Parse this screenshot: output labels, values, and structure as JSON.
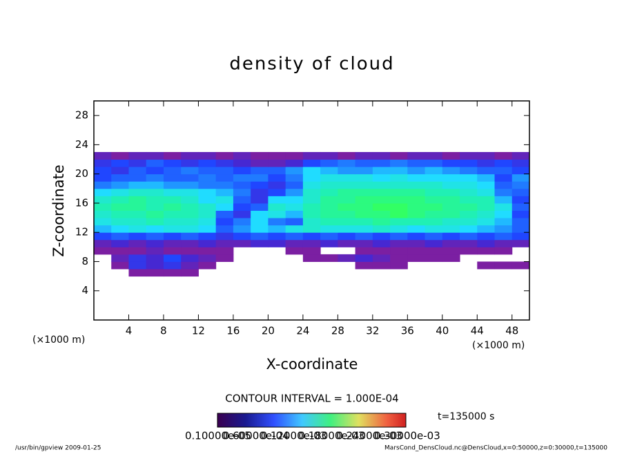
{
  "chart_data": {
    "type": "heatmap",
    "title": "density of cloud",
    "x_label": "X-coordinate",
    "y_label": "Z-coordinate",
    "x_unit_left": "(×1000 m)",
    "x_unit_right": "(×1000 m)",
    "xlim": [
      0,
      50
    ],
    "xticks": [
      4,
      8,
      12,
      16,
      20,
      24,
      28,
      32,
      36,
      40,
      44,
      48
    ],
    "ylim": [
      0,
      30
    ],
    "yticks": [
      4,
      8,
      12,
      16,
      20,
      24,
      28
    ],
    "x_edges": [
      0,
      2,
      4,
      6,
      8,
      10,
      12,
      14,
      16,
      18,
      20,
      22,
      24,
      26,
      28,
      30,
      32,
      34,
      36,
      38,
      40,
      42,
      44,
      46,
      48,
      50
    ],
    "z_edges": [
      6,
      7,
      8,
      9,
      10,
      11,
      12,
      13,
      14,
      15,
      16,
      17,
      18,
      19,
      20,
      21,
      22,
      23
    ],
    "values": [
      [
        null,
        null,
        1e-05,
        1e-05,
        1e-05,
        1e-05,
        null,
        null,
        null,
        null,
        null,
        null,
        null,
        null,
        null,
        null,
        null,
        null,
        null,
        null,
        null,
        null,
        null,
        null,
        null
      ],
      [
        null,
        1e-05,
        4e-05,
        3e-05,
        4e-05,
        2e-05,
        1e-05,
        null,
        null,
        null,
        null,
        null,
        null,
        null,
        null,
        1e-05,
        1e-05,
        1e-05,
        null,
        null,
        null,
        null,
        1e-05,
        1e-05,
        1e-05
      ],
      [
        null,
        2e-05,
        4e-05,
        3e-05,
        5e-05,
        3e-05,
        2e-05,
        1e-05,
        null,
        null,
        null,
        null,
        1e-05,
        1e-05,
        2e-05,
        3e-05,
        2e-05,
        1e-05,
        1e-05,
        1e-05,
        1e-05,
        null,
        null,
        null,
        null
      ],
      [
        1e-05,
        1e-05,
        1e-05,
        2e-05,
        1e-05,
        1e-05,
        1e-05,
        1e-05,
        null,
        null,
        null,
        1e-05,
        1e-05,
        null,
        null,
        1e-05,
        1e-05,
        1e-05,
        1e-05,
        1e-05,
        1e-05,
        1e-05,
        1e-05,
        1e-05,
        null
      ],
      [
        2e-05,
        3e-05,
        2e-05,
        3e-05,
        2e-05,
        2e-05,
        3e-05,
        2e-05,
        2e-05,
        3e-05,
        3e-05,
        2e-05,
        2e-05,
        3e-05,
        2e-05,
        2e-05,
        3e-05,
        2e-05,
        2e-05,
        3e-05,
        2e-05,
        2e-05,
        3e-05,
        2e-05,
        2e-05
      ],
      [
        5e-05,
        6e-05,
        5e-05,
        6e-05,
        5e-05,
        6e-05,
        5e-05,
        4e-05,
        5e-05,
        6e-05,
        5e-05,
        6e-05,
        5e-05,
        6e-05,
        5e-05,
        6e-05,
        5e-05,
        6e-05,
        5e-05,
        6e-05,
        5e-05,
        6e-05,
        5e-05,
        6e-05,
        5e-05
      ],
      [
        9e-05,
        0.0001,
        0.00011,
        0.0001,
        0.00011,
        0.00011,
        0.0001,
        6e-05,
        8e-05,
        0.0001,
        9e-05,
        0.00011,
        0.00012,
        0.00011,
        0.00011,
        0.00011,
        0.00012,
        0.00011,
        0.0001,
        0.00011,
        0.00011,
        0.0001,
        9e-05,
        8e-05,
        6e-05
      ],
      [
        0.00011,
        0.00012,
        0.00012,
        0.00013,
        0.00012,
        0.00012,
        0.00011,
        5e-05,
        7e-05,
        0.0001,
        7e-05,
        6e-05,
        0.00012,
        0.00013,
        0.00013,
        0.00013,
        0.00014,
        0.00013,
        0.00013,
        0.00013,
        0.00012,
        0.00012,
        0.00011,
        9e-05,
        6e-05
      ],
      [
        0.00012,
        0.00013,
        0.00013,
        0.00014,
        0.00013,
        0.00013,
        0.00012,
        6e-05,
        4e-05,
        0.0001,
        0.00011,
        9e-05,
        0.00013,
        0.00014,
        0.00014,
        0.00015,
        0.00015,
        0.00016,
        0.00015,
        0.00014,
        0.00014,
        0.00013,
        0.00012,
        0.0001,
        5e-05
      ],
      [
        0.00013,
        0.00014,
        0.00014,
        0.00013,
        0.00014,
        0.00013,
        0.00012,
        0.0001,
        5e-05,
        6e-05,
        0.00012,
        0.00011,
        0.00013,
        0.00014,
        0.00015,
        0.00015,
        0.00016,
        0.00016,
        0.00015,
        0.00015,
        0.00014,
        0.00014,
        0.00013,
        0.00011,
        6e-05
      ],
      [
        0.00012,
        0.00013,
        0.00014,
        0.00013,
        0.00013,
        0.00012,
        0.0001,
        0.00011,
        6e-05,
        4e-05,
        0.0001,
        0.0001,
        0.00012,
        0.00014,
        0.00014,
        0.00015,
        0.00015,
        0.00015,
        0.00015,
        0.00014,
        0.00014,
        0.00013,
        0.00013,
        9e-05,
        5e-05
      ],
      [
        0.0001,
        0.00011,
        0.00012,
        0.00012,
        0.00011,
        0.00011,
        0.0001,
        9e-05,
        7e-05,
        4e-05,
        5e-05,
        8e-05,
        0.00012,
        0.00013,
        0.00014,
        0.00014,
        0.00014,
        0.00014,
        0.00014,
        0.00013,
        0.00013,
        0.00012,
        0.00011,
        7e-05,
        6e-05
      ],
      [
        7e-05,
        8e-05,
        9e-05,
        9e-05,
        8e-05,
        8e-05,
        7e-05,
        7e-05,
        6e-05,
        5e-05,
        4e-05,
        6e-05,
        0.00011,
        0.00012,
        0.00012,
        0.00012,
        0.00012,
        0.00012,
        0.00012,
        0.00012,
        0.00011,
        0.00011,
        0.0001,
        6e-05,
        7e-05
      ],
      [
        5e-05,
        6e-05,
        6e-05,
        7e-05,
        6e-05,
        6e-05,
        7e-05,
        6e-05,
        7e-05,
        7e-05,
        5e-05,
        7e-05,
        0.0001,
        0.00011,
        0.00011,
        0.00011,
        0.0001,
        0.00011,
        0.0001,
        0.0001,
        0.0001,
        0.0001,
        9e-05,
        5e-05,
        8e-05
      ],
      [
        5e-05,
        4e-05,
        6e-05,
        5e-05,
        6e-05,
        7e-05,
        6e-05,
        6e-05,
        5e-05,
        6e-05,
        6e-05,
        8e-05,
        0.0001,
        9e-05,
        8e-05,
        8e-05,
        9e-05,
        9e-05,
        8e-05,
        9e-05,
        8e-05,
        7e-05,
        6e-05,
        6e-05,
        5e-05
      ],
      [
        4e-05,
        5e-05,
        4e-05,
        6e-05,
        5e-05,
        4e-05,
        5e-05,
        4e-05,
        3e-05,
        2e-05,
        2e-05,
        3e-05,
        5e-05,
        6e-05,
        7e-05,
        6e-05,
        6e-05,
        7e-05,
        6e-05,
        6e-05,
        5e-05,
        5e-05,
        4e-05,
        5e-05,
        4e-05
      ],
      [
        2e-05,
        1e-05,
        2e-05,
        2e-05,
        1e-05,
        2e-05,
        2e-05,
        1e-05,
        2e-05,
        1e-05,
        1e-05,
        1e-05,
        2e-05,
        2e-05,
        1e-05,
        2e-05,
        2e-05,
        1e-05,
        2e-05,
        2e-05,
        1e-05,
        2e-05,
        2e-05,
        1e-05,
        2e-05
      ]
    ],
    "contour_interval": "CONTOUR INTERVAL = 1.000E-04",
    "time_label": "t=135000 s",
    "colorbar_labels": [
      "0.10000e-05",
      "0.60000e-04",
      "0.12000e-03",
      "0.18000e-03",
      "0.24000e-03",
      "0.30000e-03"
    ],
    "footer_left": "/usr/bin/gpview  2009-01-25",
    "footer_right": "MarsCond_DensCloud.nc@DensCloud,x=0:50000,z=0:30000,t=135000"
  }
}
